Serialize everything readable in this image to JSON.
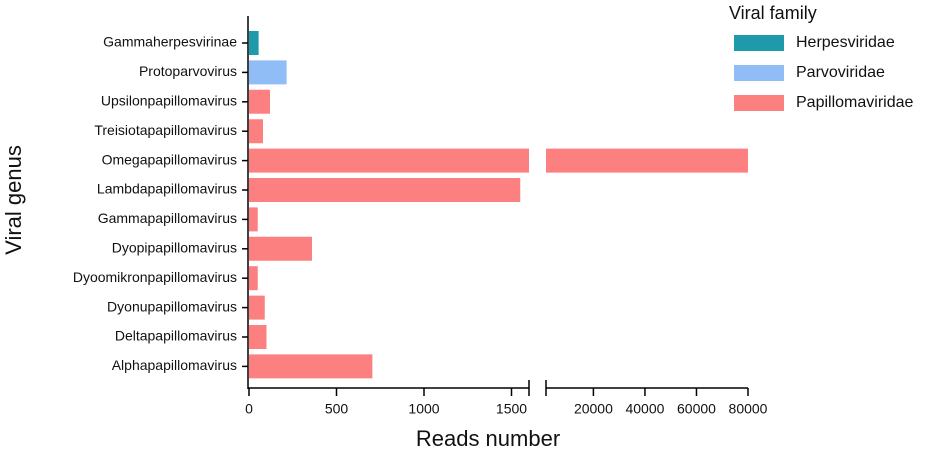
{
  "chart_data": {
    "type": "bar",
    "orientation": "horizontal",
    "x_label": "Reads number",
    "y_label": "Viral genus",
    "legend_title": "Viral family",
    "legend": "right",
    "categories": [
      "Gammaherpesvirinae",
      "Protoparvovirus",
      "Upsilonpapillomavirus",
      "Treisiotapapillomavirus",
      "Omegapapillomavirus",
      "Lambdapapillomavirus",
      "Gammapapillomavirus",
      "Dyopipapillomavirus",
      "Dyoomikronpapillomavirus",
      "Dyonupapillomavirus",
      "Deltapapillomavirus",
      "Alphapapillomavirus"
    ],
    "series": [
      {
        "name": "Herpesviridae",
        "color": "#1e9aaa",
        "values": [
          55,
          null,
          null,
          null,
          null,
          null,
          null,
          null,
          null,
          null,
          null,
          null
        ]
      },
      {
        "name": "Parvoviridae",
        "color": "#90bdf5",
        "values": [
          null,
          215,
          null,
          null,
          null,
          null,
          null,
          null,
          null,
          null,
          null,
          null
        ]
      },
      {
        "name": "Papillomaviridae",
        "color": "#fc8080",
        "values": [
          null,
          null,
          120,
          80,
          80000,
          1550,
          50,
          360,
          50,
          90,
          100,
          705
        ]
      }
    ],
    "x_segments": [
      {
        "xlim": [
          0,
          1600
        ],
        "xticks": [
          0,
          500,
          1000,
          1500
        ]
      },
      {
        "xlim": [
          1600,
          80000
        ],
        "xticks": [
          20000,
          40000,
          60000,
          80000
        ]
      }
    ]
  }
}
